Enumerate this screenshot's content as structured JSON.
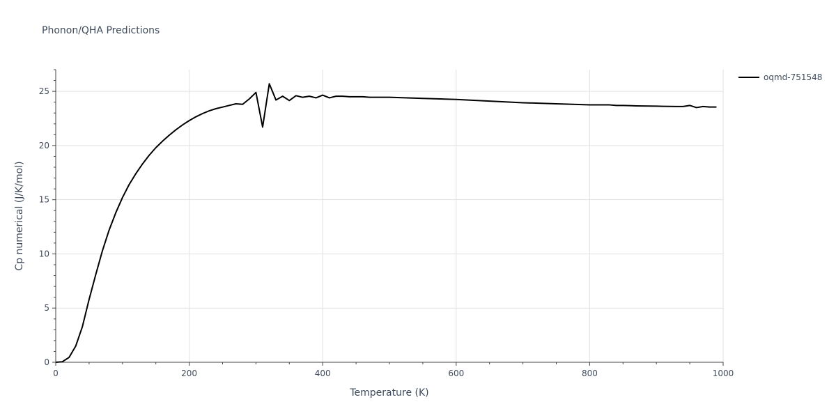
{
  "title": "Phonon/QHA Predictions",
  "chart_data": {
    "type": "line",
    "title": "Phonon/QHA Predictions",
    "xlabel": "Temperature (K)",
    "ylabel": "Cp numerical (J/K/mol)",
    "xlim": [
      0,
      1000
    ],
    "ylim": [
      0,
      27
    ],
    "x_ticks": [
      "0",
      "200",
      "400",
      "600",
      "800",
      "1000"
    ],
    "y_ticks": [
      "0",
      "5",
      "10",
      "15",
      "20",
      "25"
    ],
    "x_tick_values": [
      0,
      200,
      400,
      600,
      800,
      1000
    ],
    "y_tick_values": [
      0,
      5,
      10,
      15,
      20,
      25
    ],
    "grid": true,
    "legend_position": "top-right",
    "series": [
      {
        "name": "oqmd-751548",
        "color": "#000000",
        "x": [
          0,
          10,
          20,
          30,
          40,
          50,
          60,
          70,
          80,
          90,
          100,
          110,
          120,
          130,
          140,
          150,
          160,
          170,
          180,
          190,
          200,
          210,
          220,
          230,
          240,
          250,
          260,
          270,
          280,
          290,
          300,
          310,
          320,
          330,
          340,
          350,
          360,
          370,
          380,
          390,
          400,
          410,
          420,
          430,
          440,
          450,
          460,
          470,
          480,
          490,
          500,
          550,
          600,
          650,
          700,
          750,
          800,
          810,
          820,
          830,
          840,
          850,
          860,
          870,
          880,
          890,
          900,
          910,
          920,
          930,
          940,
          950,
          960,
          970,
          980,
          990
        ],
        "y": [
          0.0,
          0.05,
          0.45,
          1.5,
          3.3,
          5.8,
          8.1,
          10.3,
          12.2,
          13.8,
          15.2,
          16.4,
          17.4,
          18.3,
          19.1,
          19.8,
          20.4,
          20.95,
          21.45,
          21.9,
          22.3,
          22.65,
          22.95,
          23.2,
          23.4,
          23.55,
          23.7,
          23.85,
          23.8,
          24.3,
          24.9,
          21.7,
          25.7,
          24.2,
          24.55,
          24.15,
          24.6,
          24.45,
          24.55,
          24.4,
          24.65,
          24.4,
          24.55,
          24.55,
          24.5,
          24.5,
          24.5,
          24.45,
          24.45,
          24.45,
          24.45,
          24.35,
          24.25,
          24.1,
          23.95,
          23.85,
          23.75,
          23.75,
          23.75,
          23.75,
          23.7,
          23.7,
          23.68,
          23.66,
          23.65,
          23.64,
          23.63,
          23.62,
          23.61,
          23.6,
          23.6,
          23.7,
          23.5,
          23.6,
          23.55,
          23.55
        ]
      }
    ]
  }
}
